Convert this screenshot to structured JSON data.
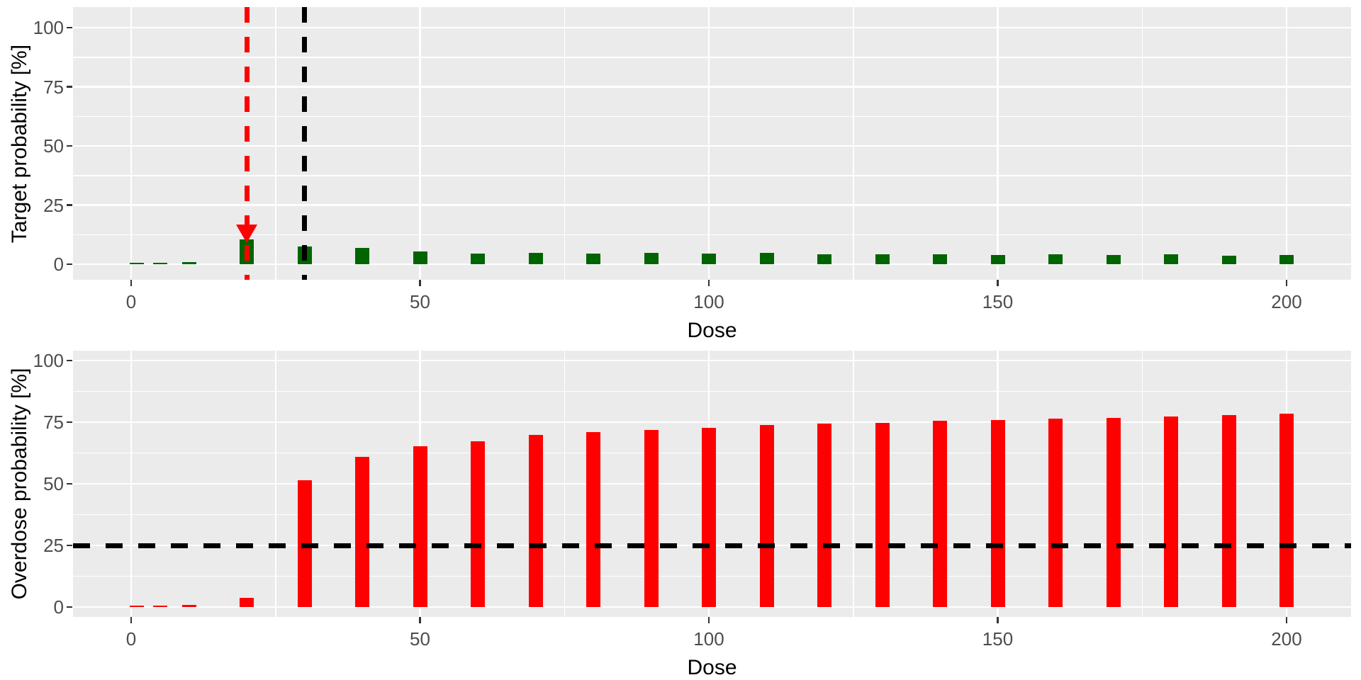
{
  "figure": {
    "colors": {
      "panel_bg": "#EBEBEB",
      "grid": "#FFFFFF",
      "tick_text": "#4D4D4D",
      "axis_title": "#000000",
      "target_bar": "#006400",
      "overdose_bar": "#FF0000",
      "target_dose_line": "#FF0000",
      "reference_dose_line": "#000000",
      "overdose_threshold_line": "#000000"
    },
    "chart_data": [
      {
        "type": "bar",
        "title": "",
        "xlabel": "Dose",
        "ylabel": "Target probability [%]",
        "bar_color": "#006400",
        "ylim": [
          0,
          100
        ],
        "yticks": [
          0,
          25,
          50,
          75,
          100
        ],
        "yticks_minor": [
          12.5,
          37.5,
          62.5,
          87.5
        ],
        "xticks": [
          0,
          50,
          100,
          150,
          200
        ],
        "xticks_minor": [
          25,
          75,
          125,
          175
        ],
        "grid": true,
        "legend_position": "none",
        "x": [
          1,
          5,
          10,
          20,
          30,
          40,
          50,
          60,
          70,
          80,
          90,
          100,
          110,
          120,
          130,
          140,
          150,
          160,
          170,
          180,
          190,
          200
        ],
        "values": [
          0.5,
          0.6,
          0.9,
          10.5,
          7.6,
          6.8,
          5.3,
          4.6,
          4.9,
          4.5,
          4.8,
          4.6,
          4.7,
          4.3,
          4.2,
          4.3,
          3.9,
          4.2,
          3.9,
          4.1,
          3.7,
          4.0
        ],
        "vlines": [
          {
            "x": 20,
            "color": "#FF0000",
            "style": "dashed"
          },
          {
            "x": 30,
            "color": "#000000",
            "style": "dashed"
          }
        ],
        "hlines": [],
        "marker": {
          "x": 20,
          "y": 13,
          "shape": "triangle-down",
          "color": "#FF0000"
        }
      },
      {
        "type": "bar",
        "title": "",
        "xlabel": "Dose",
        "ylabel": "Overdose probability [%]",
        "bar_color": "#FF0000",
        "ylim": [
          0,
          100
        ],
        "yticks": [
          0,
          25,
          50,
          75,
          100
        ],
        "yticks_minor": [
          12.5,
          37.5,
          62.5,
          87.5
        ],
        "xticks": [
          0,
          50,
          100,
          150,
          200
        ],
        "xticks_minor": [
          25,
          75,
          125,
          175
        ],
        "grid": true,
        "legend_position": "none",
        "x": [
          1,
          5,
          10,
          20,
          30,
          40,
          50,
          60,
          70,
          80,
          90,
          100,
          110,
          120,
          130,
          140,
          150,
          160,
          170,
          180,
          190,
          200
        ],
        "values": [
          0.5,
          0.6,
          0.8,
          3.7,
          51.5,
          61.0,
          65.3,
          67.3,
          69.7,
          70.9,
          71.8,
          72.6,
          73.8,
          74.4,
          74.6,
          75.5,
          75.8,
          76.4,
          76.8,
          77.4,
          77.8,
          78.4
        ],
        "vlines": [],
        "hlines": [
          {
            "y": 25,
            "color": "#000000",
            "style": "dashed"
          }
        ],
        "marker": null
      }
    ]
  }
}
